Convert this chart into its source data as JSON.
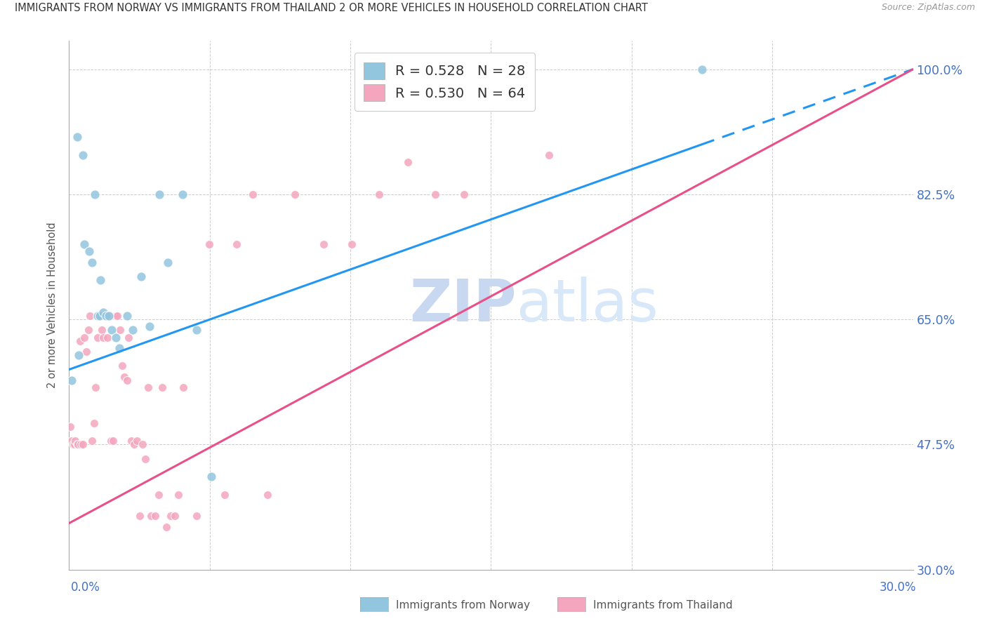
{
  "title": "IMMIGRANTS FROM NORWAY VS IMMIGRANTS FROM THAILAND 2 OR MORE VEHICLES IN HOUSEHOLD CORRELATION CHART",
  "source": "Source: ZipAtlas.com",
  "ylabel": "2 or more Vehicles in Household",
  "right_yticks": [
    100.0,
    82.5,
    65.0,
    47.5,
    30.0
  ],
  "xmin": 0.0,
  "xmax": 30.0,
  "ymin": 30.0,
  "ymax": 104.0,
  "norway_R": 0.528,
  "norway_N": 28,
  "thailand_R": 0.53,
  "thailand_N": 64,
  "norway_color": "#92c5de",
  "thailand_color": "#f4a6be",
  "norway_line_color": "#2196F3",
  "thailand_line_color": "#e8508a",
  "watermark_zip_color": "#c8d8f0",
  "watermark_atlas_color": "#d8e8f8",
  "norway_x": [
    0.08,
    0.28,
    0.35,
    0.48,
    0.55,
    0.72,
    0.82,
    0.92,
    1.02,
    1.08,
    1.12,
    1.22,
    1.32,
    1.42,
    1.52,
    1.65,
    1.78,
    2.05,
    2.25,
    2.55,
    2.85,
    3.22,
    3.52,
    4.02,
    4.52,
    5.05,
    15.2,
    22.5
  ],
  "norway_y": [
    56.5,
    90.5,
    60.0,
    88.0,
    75.5,
    74.5,
    73.0,
    82.5,
    65.5,
    65.5,
    70.5,
    66.0,
    65.5,
    65.5,
    63.5,
    62.5,
    61.0,
    65.5,
    63.5,
    71.0,
    64.0,
    82.5,
    73.0,
    82.5,
    63.5,
    43.0,
    95.5,
    100.0
  ],
  "thailand_x": [
    0.05,
    0.1,
    0.15,
    0.18,
    0.22,
    0.28,
    0.32,
    0.38,
    0.42,
    0.48,
    0.55,
    0.62,
    0.68,
    0.75,
    0.82,
    0.88,
    0.95,
    1.02,
    1.08,
    1.15,
    1.22,
    1.28,
    1.35,
    1.42,
    1.48,
    1.55,
    1.65,
    1.72,
    1.82,
    1.88,
    1.95,
    2.05,
    2.12,
    2.22,
    2.32,
    2.42,
    2.52,
    2.62,
    2.72,
    2.82,
    2.92,
    3.05,
    3.18,
    3.32,
    3.45,
    3.62,
    3.75,
    3.88,
    4.05,
    4.52,
    4.98,
    5.52,
    5.95,
    6.52,
    7.05,
    8.02,
    9.05,
    10.05,
    11.02,
    12.05,
    13.02,
    14.05,
    15.02,
    17.05
  ],
  "thailand_y": [
    50.0,
    48.0,
    47.5,
    47.5,
    48.0,
    47.5,
    47.5,
    62.0,
    47.5,
    47.5,
    62.5,
    60.5,
    63.5,
    65.5,
    48.0,
    50.5,
    55.5,
    62.5,
    65.5,
    63.5,
    62.5,
    65.5,
    62.5,
    65.5,
    48.0,
    48.0,
    65.5,
    65.5,
    63.5,
    58.5,
    57.0,
    56.5,
    62.5,
    48.0,
    47.5,
    48.0,
    37.5,
    47.5,
    45.5,
    55.5,
    37.5,
    37.5,
    40.5,
    55.5,
    36.0,
    37.5,
    37.5,
    40.5,
    55.5,
    37.5,
    75.5,
    40.5,
    75.5,
    82.5,
    40.5,
    82.5,
    75.5,
    75.5,
    82.5,
    87.0,
    82.5,
    82.5,
    100.0,
    88.0
  ],
  "norway_line_x0": 0.0,
  "norway_line_y0": 58.0,
  "norway_line_x1": 30.0,
  "norway_line_y1": 100.0,
  "norway_dash_start": 22.5,
  "thailand_line_x0": 0.0,
  "thailand_line_y0": 36.5,
  "thailand_line_x1": 30.0,
  "thailand_line_y1": 100.0
}
